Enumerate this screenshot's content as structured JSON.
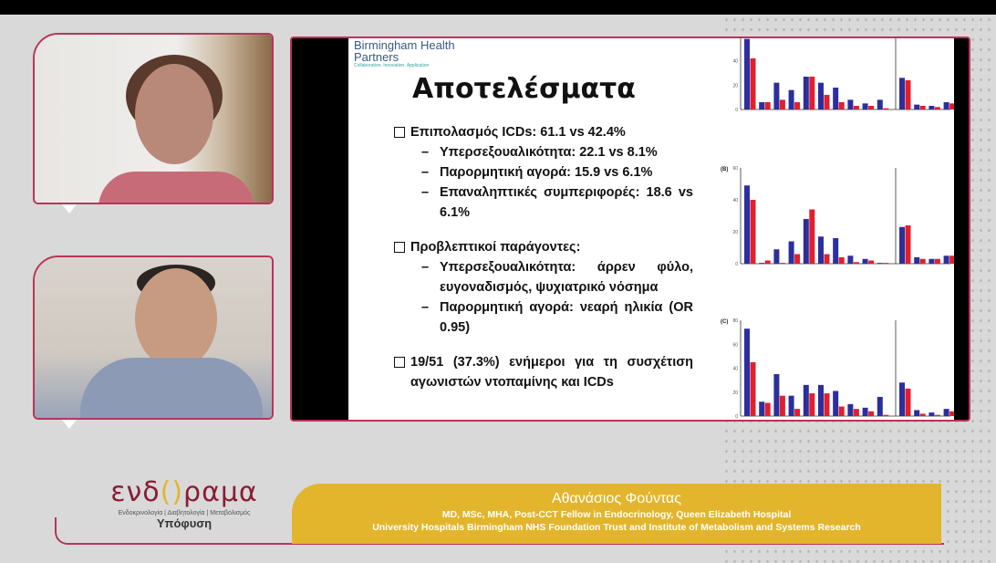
{
  "participants": [
    {
      "role": "speaker-1",
      "video": "webcam"
    },
    {
      "role": "speaker-2",
      "video": "webcam"
    }
  ],
  "slide": {
    "logo": {
      "name": "Birmingham Health Partners",
      "tagline": "Collaboration. Innovation. Application"
    },
    "title": "Αποτελέσματα",
    "bullets": [
      {
        "level": 1,
        "text": "Επιπολασμός ICDs: 61.1 vs 42.4%"
      },
      {
        "level": 2,
        "text": "Υπερσεξουαλικότητα: 22.1 vs 8.1%"
      },
      {
        "level": 2,
        "text": "Παρορμητική αγορά: 15.9 vs 6.1%"
      },
      {
        "level": 2,
        "text": "Επαναληπτικές συμπεριφορές: 18.6 vs 6.1%"
      },
      {
        "level": 1,
        "text": "Προβλεπτικοί παράγοντες:"
      },
      {
        "level": 2,
        "text": "Υπερσεξουαλικότητα: άρρεν φύλο, ευγοναδισμός, ψυχιατρικό νόσημα"
      },
      {
        "level": 2,
        "text": "Παρορμητική αγορά: νεαρή ηλικία (OR 0.95)"
      },
      {
        "level": 1,
        "text": "19/51 (37.3%) ενήμεροι για τη συσχέτιση αγωνιστών ντοπαμίνης και ICDs"
      }
    ],
    "figure": {
      "colors": {
        "blue": "#2b2f9e",
        "red": "#e0202f"
      },
      "panels": [
        {
          "label": "",
          "ymax": 60,
          "ticks": [
            0,
            20,
            40
          ],
          "blue": [
            58,
            6,
            22,
            16,
            27,
            22,
            18,
            8,
            5,
            8,
            26,
            4,
            3,
            6
          ],
          "red": [
            42,
            6,
            8,
            6,
            27,
            12,
            6,
            3,
            3,
            1,
            24,
            3,
            2,
            5
          ]
        },
        {
          "label": "(B)",
          "ymax": 60,
          "ticks": [
            0,
            20,
            40,
            60
          ],
          "blue": [
            49,
            0.5,
            9,
            14,
            28,
            17,
            16,
            5,
            3,
            0.5,
            23,
            4,
            3,
            5
          ],
          "red": [
            40,
            2,
            0.5,
            6,
            34,
            6,
            4,
            1,
            2,
            0.5,
            24,
            3,
            3,
            5
          ]
        },
        {
          "label": "(C)",
          "ymax": 80,
          "ticks": [
            0,
            20,
            40,
            60,
            80
          ],
          "blue": [
            73,
            12,
            35,
            17,
            26,
            26,
            21,
            10,
            7,
            16,
            28,
            5,
            3,
            6
          ],
          "red": [
            45,
            11,
            17,
            6,
            19,
            19,
            8,
            6,
            4,
            1,
            23,
            2,
            1,
            4
          ]
        }
      ]
    }
  },
  "banner": {
    "name": "Αθανάσιος Φούντας",
    "line1": "MD, MSc, MHA, Post-CCT Fellow in Endocrinology, Queen Elizabeth Hospital",
    "line2": "University Hospitals Birmingham NHS Foundation Trust and Institute of Metabolism and Systems Research"
  },
  "brand": {
    "name_left": "ενδ",
    "name_right": "ραμα",
    "subtitle": "Ενδοκρινολογία | Διαβητολογία | Μεταβολισμός",
    "tag": "Υπόφυση",
    "accent": "#8a1d33",
    "gold": "#e2b52c"
  }
}
